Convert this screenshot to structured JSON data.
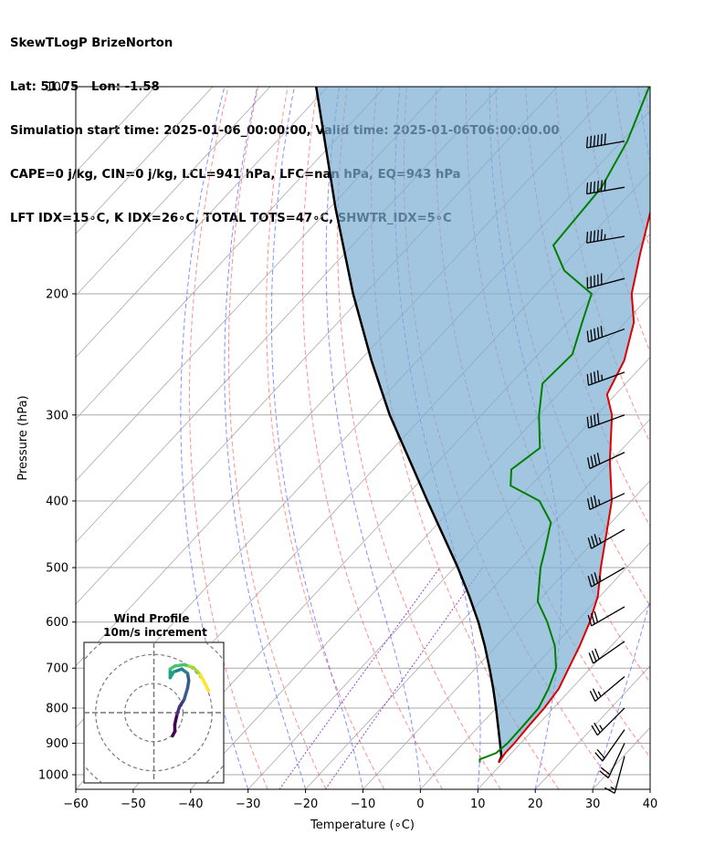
{
  "header": {
    "line1": "SkewTLogP BrizeNorton",
    "line2": "Lat: 51.75   Lon: -1.58",
    "line3": "Simulation start time: 2025-01-06_00:00:00, Valid time: 2025-01-06T06:00:00.00",
    "line4": "CAPE=0 j/kg, CIN=0 j/kg, LCL=941 hPa, LFC=nan hPa, EQ=943 hPa",
    "line5": "LFT IDX=15∘C, K IDX=26∘C, TOTAL TOTS=47∘C, SHWTR_IDX=5∘C"
  },
  "chart_data": {
    "type": "line",
    "xlabel": "Temperature (∘C)",
    "ylabel": "Pressure (hPa)",
    "xlim": [
      -60,
      40
    ],
    "ylim": [
      1050,
      100
    ],
    "xticks": [
      -60,
      -50,
      -40,
      -30,
      -20,
      -10,
      0,
      10,
      20,
      30,
      40
    ],
    "xtick_labels": [
      "−60",
      "−50",
      "−40",
      "−30",
      "−20",
      "−10",
      "0",
      "10",
      "20",
      "30",
      "40"
    ],
    "yticks": [
      1000,
      900,
      800,
      700,
      600,
      500,
      400,
      300,
      200,
      100
    ],
    "ytick_labels": [
      "1000",
      "900",
      "800",
      "700",
      "600",
      "500",
      "400",
      "300",
      "200",
      "100"
    ],
    "log_scale_y": true,
    "skew": true,
    "colors": {
      "temperature": "#e00000",
      "dewpoint": "#008000",
      "parcel": "#000000",
      "cape_fill": "#7aaed3",
      "dry_adiabat": "#ff5555",
      "moist_adiabat": "#4455ff",
      "mixing_ratio": "#9944cc",
      "isotherm": "#aaaaaa",
      "isobar": "#aaaaaa"
    },
    "temperature_profile": [
      {
        "p": 960,
        "t": 9.3
      },
      {
        "p": 930,
        "t": 8.9
      },
      {
        "p": 900,
        "t": 8.9
      },
      {
        "p": 850,
        "t": 8.6
      },
      {
        "p": 800,
        "t": 8.4
      },
      {
        "p": 750,
        "t": 7.8
      },
      {
        "p": 700,
        "t": 6.2
      },
      {
        "p": 650,
        "t": 4.5
      },
      {
        "p": 600,
        "t": 2.4
      },
      {
        "p": 550,
        "t": -0.4
      },
      {
        "p": 500,
        "t": -4.5
      },
      {
        "p": 450,
        "t": -8.7
      },
      {
        "p": 400,
        "t": -13.4
      },
      {
        "p": 350,
        "t": -20.2
      },
      {
        "p": 300,
        "t": -27.3
      },
      {
        "p": 280,
        "t": -31.5
      },
      {
        "p": 250,
        "t": -34.0
      },
      {
        "p": 220,
        "t": -38.5
      },
      {
        "p": 200,
        "t": -43.5
      },
      {
        "p": 175,
        "t": -48.5
      },
      {
        "p": 150,
        "t": -54.0
      },
      {
        "p": 125,
        "t": -61.5
      },
      {
        "p": 100,
        "t": -70.5
      }
    ],
    "dewpoint_profile": [
      {
        "p": 960,
        "t": 6.0
      },
      {
        "p": 950,
        "t": 5.5
      },
      {
        "p": 930,
        "t": 7.3
      },
      {
        "p": 900,
        "t": 7.7
      },
      {
        "p": 850,
        "t": 7.6
      },
      {
        "p": 800,
        "t": 7.4
      },
      {
        "p": 750,
        "t": 6.0
      },
      {
        "p": 700,
        "t": 4.0
      },
      {
        "p": 650,
        "t": 0.2
      },
      {
        "p": 600,
        "t": -5.0
      },
      {
        "p": 560,
        "t": -10.0
      },
      {
        "p": 500,
        "t": -15.0
      },
      {
        "p": 470,
        "t": -17.2
      },
      {
        "p": 430,
        "t": -20.5
      },
      {
        "p": 400,
        "t": -26.0
      },
      {
        "p": 380,
        "t": -33.5
      },
      {
        "p": 360,
        "t": -36.0
      },
      {
        "p": 335,
        "t": -34.5
      },
      {
        "p": 300,
        "t": -40.0
      },
      {
        "p": 270,
        "t": -44.5
      },
      {
        "p": 245,
        "t": -44.0
      },
      {
        "p": 220,
        "t": -47.5
      },
      {
        "p": 200,
        "t": -50.5
      },
      {
        "p": 185,
        "t": -59.0
      },
      {
        "p": 170,
        "t": -65.0
      },
      {
        "p": 140,
        "t": -66.0
      },
      {
        "p": 120,
        "t": -69.0
      },
      {
        "p": 100,
        "t": -74.0
      }
    ],
    "parcel_profile": [
      {
        "p": 960,
        "t": 9.3
      },
      {
        "p": 941,
        "t": 8.8
      },
      {
        "p": 900,
        "t": 6.4
      },
      {
        "p": 850,
        "t": 3.3
      },
      {
        "p": 800,
        "t": 0.0
      },
      {
        "p": 750,
        "t": -3.6
      },
      {
        "p": 700,
        "t": -7.6
      },
      {
        "p": 650,
        "t": -12.0
      },
      {
        "p": 600,
        "t": -17.0
      },
      {
        "p": 550,
        "t": -22.8
      },
      {
        "p": 500,
        "t": -29.4
      },
      {
        "p": 450,
        "t": -37.0
      },
      {
        "p": 400,
        "t": -45.5
      },
      {
        "p": 350,
        "t": -55.0
      },
      {
        "p": 300,
        "t": -66.0
      },
      {
        "p": 250,
        "t": -78.0
      },
      {
        "p": 200,
        "t": -92.0
      },
      {
        "p": 150,
        "t": -109.0
      },
      {
        "p": 100,
        "t": -132.0
      }
    ],
    "cape_shading": {
      "from": "parcel",
      "to": "temperature"
    },
    "wind_barbs": [
      {
        "p": 120,
        "speed_kt": 60,
        "direction_deg": 260
      },
      {
        "p": 140,
        "speed_kt": 60,
        "direction_deg": 260
      },
      {
        "p": 165,
        "speed_kt": 55,
        "direction_deg": 260
      },
      {
        "p": 190,
        "speed_kt": 50,
        "direction_deg": 255
      },
      {
        "p": 225,
        "speed_kt": 50,
        "direction_deg": 250
      },
      {
        "p": 260,
        "speed_kt": 45,
        "direction_deg": 250
      },
      {
        "p": 300,
        "speed_kt": 40,
        "direction_deg": 250
      },
      {
        "p": 340,
        "speed_kt": 40,
        "direction_deg": 245
      },
      {
        "p": 390,
        "speed_kt": 35,
        "direction_deg": 245
      },
      {
        "p": 440,
        "speed_kt": 35,
        "direction_deg": 240
      },
      {
        "p": 500,
        "speed_kt": 35,
        "direction_deg": 240
      },
      {
        "p": 570,
        "speed_kt": 30,
        "direction_deg": 240
      },
      {
        "p": 640,
        "speed_kt": 30,
        "direction_deg": 235
      },
      {
        "p": 720,
        "speed_kt": 25,
        "direction_deg": 230
      },
      {
        "p": 800,
        "speed_kt": 25,
        "direction_deg": 225
      },
      {
        "p": 860,
        "speed_kt": 20,
        "direction_deg": 215
      },
      {
        "p": 900,
        "speed_kt": 20,
        "direction_deg": 205
      },
      {
        "p": 940,
        "speed_kt": 15,
        "direction_deg": 195
      }
    ],
    "hodograph": {
      "title": "Wind Profile",
      "subtitle": "10m/s increment",
      "ring_increment": 10,
      "rings": [
        10,
        20,
        30
      ],
      "limit": 30,
      "colormap": "viridis",
      "points": [
        {
          "u": 8.0,
          "v": -8.0
        },
        {
          "u": 9.0,
          "v": -6.5
        },
        {
          "u": 9.0,
          "v": -4.0
        },
        {
          "u": 10.0,
          "v": -0.5
        },
        {
          "u": 11.0,
          "v": 2.0
        },
        {
          "u": 13.0,
          "v": 4.5
        },
        {
          "u": 14.5,
          "v": 8.5
        },
        {
          "u": 15.0,
          "v": 11.0
        },
        {
          "u": 14.5,
          "v": 13.5
        },
        {
          "u": 12.0,
          "v": 15.0
        },
        {
          "u": 8.5,
          "v": 14.0
        },
        {
          "u": 7.0,
          "v": 12.0
        },
        {
          "u": 7.0,
          "v": 15.0
        },
        {
          "u": 9.0,
          "v": 16.0
        },
        {
          "u": 13.0,
          "v": 16.5
        },
        {
          "u": 15.0,
          "v": 16.0
        },
        {
          "u": 17.0,
          "v": 15.5
        },
        {
          "u": 20.0,
          "v": 13.0
        },
        {
          "u": 22.0,
          "v": 10.0
        },
        {
          "u": 23.5,
          "v": 7.5
        }
      ]
    }
  }
}
